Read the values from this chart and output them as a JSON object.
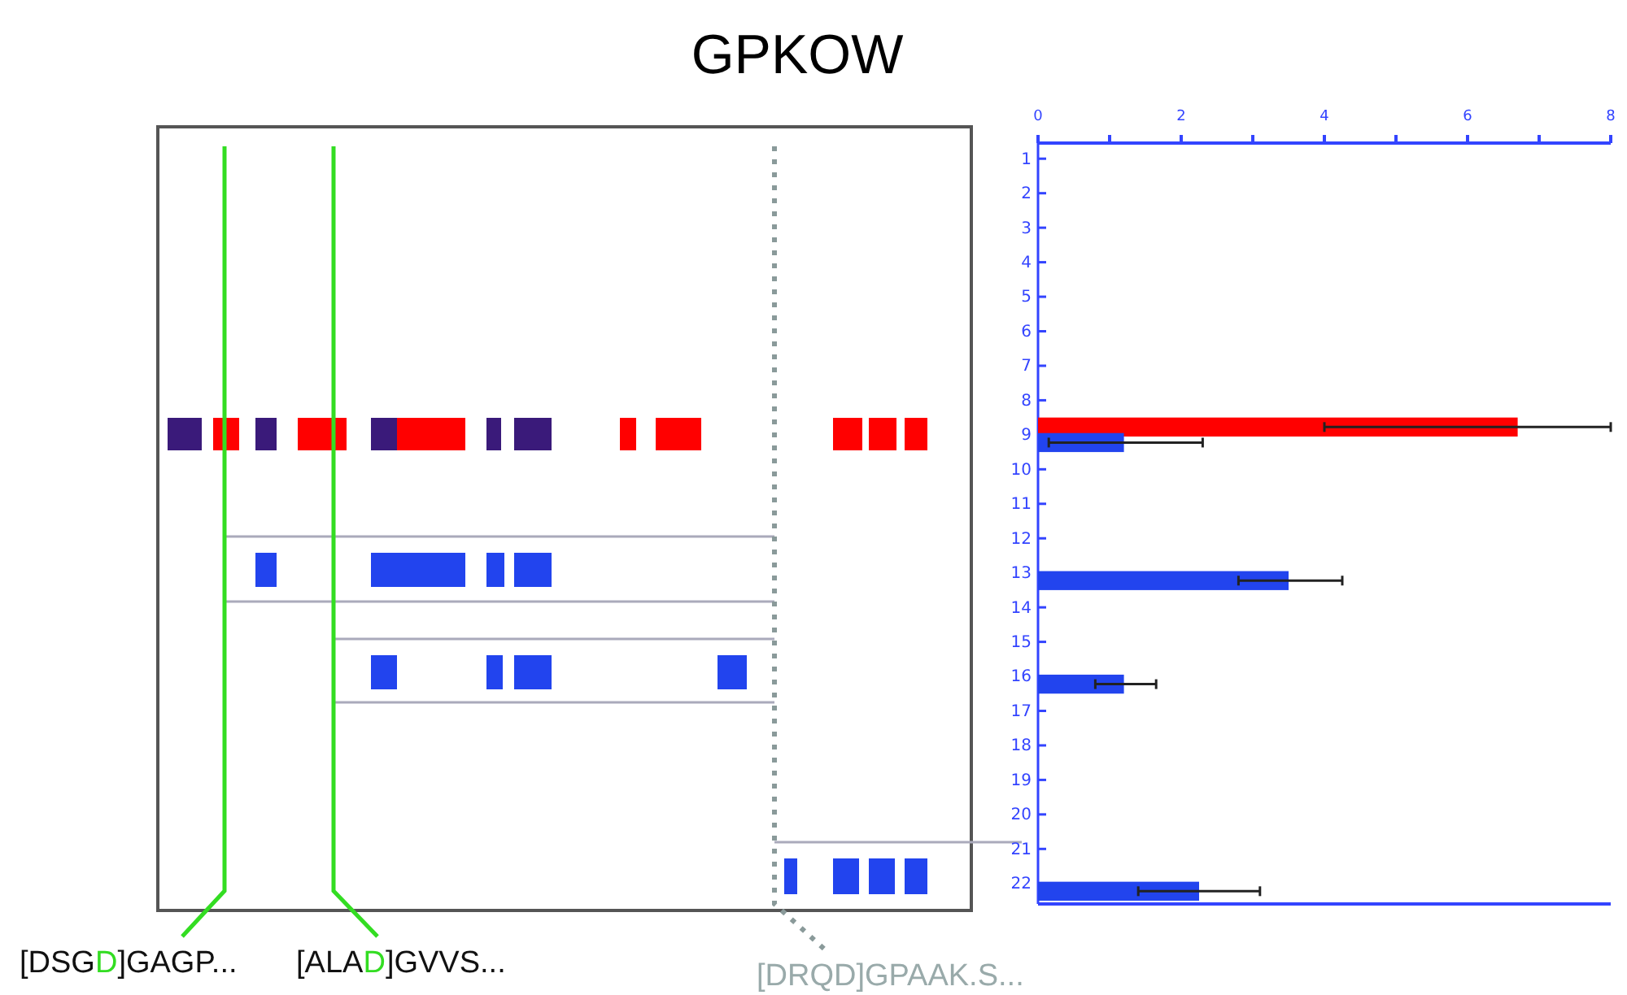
{
  "chart_data": {
    "type": "bar",
    "orientation": "horizontal",
    "title": "GPKOW",
    "categories": [
      "1",
      "2",
      "3",
      "4",
      "5",
      "6",
      "7",
      "8",
      "9",
      "10",
      "11",
      "12",
      "13",
      "14",
      "15",
      "16",
      "17",
      "18",
      "19",
      "20",
      "21",
      "22"
    ],
    "series": [
      {
        "color": "#ff0000",
        "values": [
          null,
          null,
          null,
          null,
          null,
          null,
          null,
          null,
          6.7,
          null,
          null,
          null,
          null,
          null,
          null,
          null,
          null,
          null,
          null,
          null,
          null,
          null
        ],
        "errors": [
          null,
          null,
          null,
          null,
          null,
          null,
          null,
          null,
          [
            4.0,
            8.0
          ],
          null,
          null,
          null,
          null,
          null,
          null,
          null,
          null,
          null,
          null,
          null,
          null,
          null
        ]
      },
      {
        "color": "#2244ee",
        "values": [
          null,
          null,
          null,
          null,
          null,
          null,
          null,
          null,
          1.2,
          null,
          null,
          null,
          3.5,
          null,
          null,
          1.2,
          null,
          null,
          null,
          null,
          null,
          2.25
        ],
        "errors": [
          null,
          null,
          null,
          null,
          null,
          null,
          null,
          null,
          [
            0.15,
            2.3
          ],
          null,
          null,
          null,
          [
            2.8,
            4.25
          ],
          null,
          null,
          [
            0.8,
            1.65
          ],
          null,
          null,
          null,
          null,
          null,
          [
            1.4,
            3.1
          ]
        ]
      }
    ],
    "xlim": [
      0,
      8
    ],
    "xticks": [
      0,
      {
        "value": 1,
        "label": null
      },
      2,
      {
        "value": 3,
        "label": null
      },
      4,
      {
        "value": 5,
        "label": null
      },
      6,
      {
        "value": 7,
        "label": null
      },
      8
    ],
    "grid": false,
    "legend": false,
    "annotations": [
      "[DSGD]GAGP...",
      "[ALAD]GVVS...",
      "[DRQD]GPAAK.S..."
    ]
  }
}
